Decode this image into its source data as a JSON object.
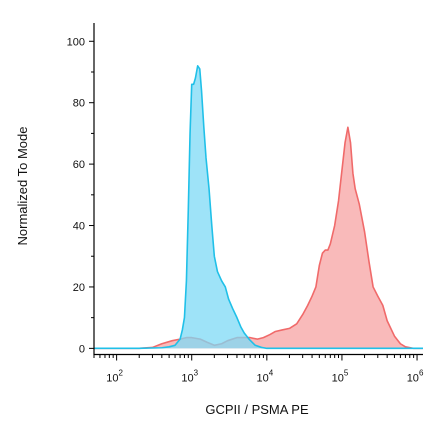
{
  "chart_data": {
    "type": "area",
    "title": "",
    "xlabel": "GCPII / PSMA PE",
    "ylabel": "Normalized To Mode",
    "x_scale": "log",
    "xlim": [
      50,
      1200000
    ],
    "ylim": [
      -2,
      104
    ],
    "x_ticks": [
      {
        "value": 100,
        "base": "10",
        "exp": "2"
      },
      {
        "value": 1000,
        "base": "10",
        "exp": "3"
      },
      {
        "value": 10000,
        "base": "10",
        "exp": "4"
      },
      {
        "value": 100000,
        "base": "10",
        "exp": "5"
      },
      {
        "value": 1000000,
        "base": "10",
        "exp": "6"
      }
    ],
    "y_ticks": [
      0,
      20,
      40,
      60,
      80,
      100
    ],
    "grid": false,
    "series": [
      {
        "color": "#f06a6a",
        "fill": "#f7a3a3",
        "points": [
          [
            50,
            0
          ],
          [
            200,
            0
          ],
          [
            300,
            0.3
          ],
          [
            400,
            1.5
          ],
          [
            550,
            2.5
          ],
          [
            700,
            3
          ],
          [
            850,
            3.5
          ],
          [
            1000,
            3.5
          ],
          [
            1300,
            3
          ],
          [
            1600,
            2
          ],
          [
            2000,
            1
          ],
          [
            2500,
            1.5
          ],
          [
            3000,
            2.5
          ],
          [
            4000,
            3.5
          ],
          [
            5000,
            3.5
          ],
          [
            6000,
            3.5
          ],
          [
            7500,
            3
          ],
          [
            9000,
            3.5
          ],
          [
            11000,
            4.5
          ],
          [
            13000,
            5.5
          ],
          [
            16000,
            6
          ],
          [
            20000,
            6.5
          ],
          [
            25000,
            8
          ],
          [
            30000,
            11
          ],
          [
            35000,
            14
          ],
          [
            40000,
            17
          ],
          [
            45000,
            20
          ],
          [
            50000,
            27
          ],
          [
            55000,
            31
          ],
          [
            60000,
            32
          ],
          [
            65000,
            32
          ],
          [
            70000,
            34
          ],
          [
            80000,
            40
          ],
          [
            90000,
            48
          ],
          [
            100000,
            58
          ],
          [
            110000,
            67
          ],
          [
            120000,
            72
          ],
          [
            130000,
            67
          ],
          [
            140000,
            57
          ],
          [
            150000,
            52
          ],
          [
            170000,
            47
          ],
          [
            200000,
            38
          ],
          [
            230000,
            28
          ],
          [
            260000,
            20
          ],
          [
            300000,
            17
          ],
          [
            350000,
            14
          ],
          [
            400000,
            9
          ],
          [
            500000,
            4
          ],
          [
            600000,
            1.5
          ],
          [
            700000,
            0.5
          ],
          [
            900000,
            0
          ],
          [
            1200000,
            0
          ]
        ]
      },
      {
        "color": "#20c0e8",
        "fill": "#7ddaf5",
        "points": [
          [
            50,
            0
          ],
          [
            200,
            0
          ],
          [
            400,
            0.2
          ],
          [
            500,
            0.5
          ],
          [
            600,
            1
          ],
          [
            700,
            3
          ],
          [
            750,
            6
          ],
          [
            800,
            10
          ],
          [
            850,
            22
          ],
          [
            900,
            45
          ],
          [
            950,
            70
          ],
          [
            1000,
            86
          ],
          [
            1060,
            86
          ],
          [
            1120,
            88
          ],
          [
            1200,
            92
          ],
          [
            1280,
            91
          ],
          [
            1350,
            84
          ],
          [
            1450,
            72
          ],
          [
            1550,
            62
          ],
          [
            1700,
            52
          ],
          [
            1850,
            40
          ],
          [
            2000,
            30
          ],
          [
            2200,
            25
          ],
          [
            2500,
            22
          ],
          [
            2800,
            20
          ],
          [
            3100,
            16
          ],
          [
            3500,
            13
          ],
          [
            4000,
            10
          ],
          [
            4500,
            7
          ],
          [
            5000,
            5
          ],
          [
            5800,
            3
          ],
          [
            7000,
            1
          ],
          [
            8500,
            0.3
          ],
          [
            10000,
            0
          ],
          [
            1200000,
            0
          ]
        ]
      }
    ]
  }
}
